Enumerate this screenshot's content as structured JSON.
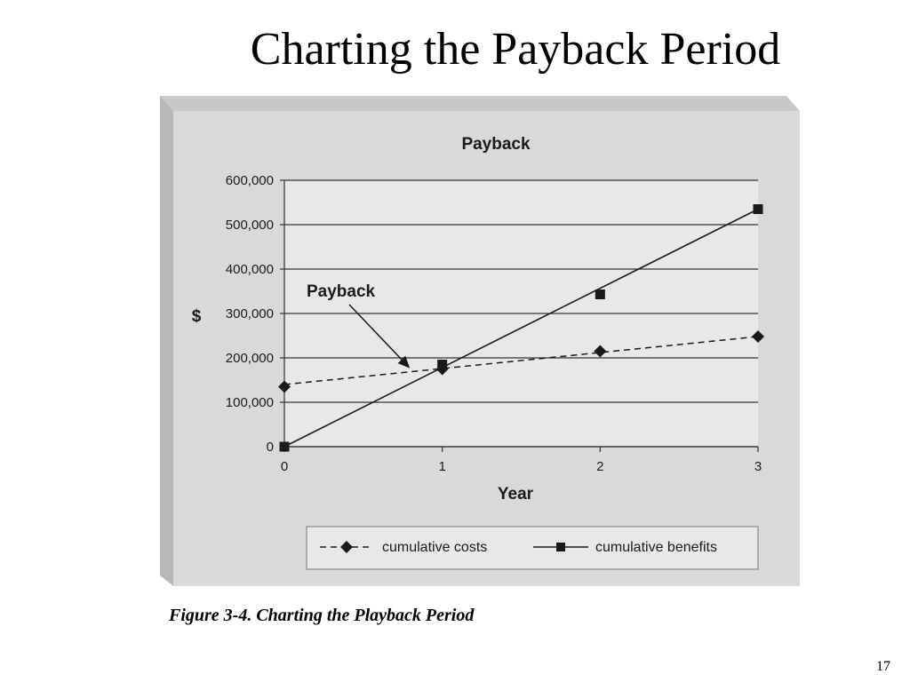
{
  "slide": {
    "title": "Charting the Payback Period",
    "caption": "Figure 3-4. Charting the Playback Period",
    "page_number": "17"
  },
  "chart_data": {
    "type": "line",
    "title": "Payback",
    "xlabel": "Year",
    "ylabel": "$",
    "x": [
      0,
      1,
      2,
      3
    ],
    "x_tick_labels": [
      "0",
      "1",
      "2",
      "3"
    ],
    "ylim": [
      0,
      600000
    ],
    "y_ticks": [
      0,
      100000,
      200000,
      300000,
      400000,
      500000,
      600000
    ],
    "y_tick_labels": [
      "0",
      "100,000",
      "200,000",
      "300,000",
      "400,000",
      "500,000",
      "600,000"
    ],
    "grid": "horizontal",
    "legend_position": "bottom",
    "series": [
      {
        "name": "cumulative costs",
        "marker": "diamond",
        "line_style": "dashed",
        "values": [
          135000,
          175000,
          215000,
          248000
        ]
      },
      {
        "name": "cumulative benefits",
        "marker": "square",
        "line_style": "solid",
        "values": [
          0,
          185000,
          343000,
          535000
        ]
      }
    ],
    "trendline_points": {
      "cumulative costs": [
        140000,
        248000
      ],
      "cumulative benefits": [
        0,
        535000
      ]
    },
    "annotation": {
      "text": "Payback",
      "points_to_year": 0.8,
      "points_to_value": 175000
    },
    "colors": {
      "panel": "#d9d9d9",
      "plot_area": "#e8e8e8",
      "lines": "#1a1a1a"
    }
  }
}
